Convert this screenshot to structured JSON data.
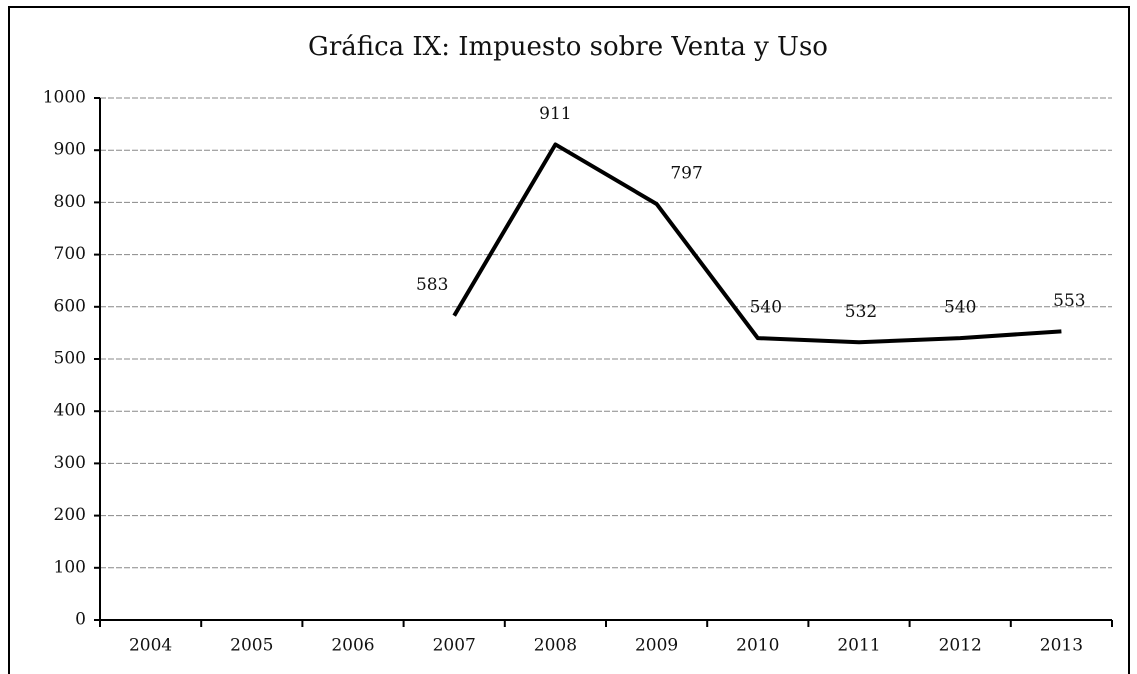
{
  "chart_data": {
    "type": "line",
    "title": "Gráfica IX: Impuesto sobre Venta y Uso",
    "categories": [
      "2004",
      "2005",
      "2006",
      "2007",
      "2008",
      "2009",
      "2010",
      "2011",
      "2012",
      "2013"
    ],
    "values": [
      null,
      null,
      null,
      583,
      911,
      797,
      540,
      532,
      540,
      553
    ],
    "color": "#000000",
    "ylim": [
      0,
      1000
    ],
    "yticks": [
      0,
      100,
      200,
      300,
      400,
      500,
      600,
      700,
      800,
      900,
      1000
    ],
    "grid": true
  }
}
